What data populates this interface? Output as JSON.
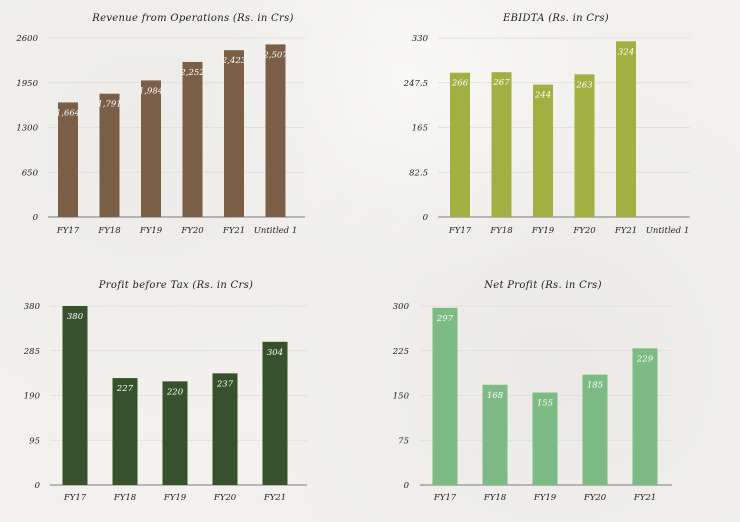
{
  "chart_data": [
    {
      "type": "bar",
      "title": "Revenue from Operations (Rs. in Crs)",
      "categories": [
        "FY17",
        "FY18",
        "FY19",
        "FY20",
        "FY21",
        "Untitled 1"
      ],
      "values": [
        1664,
        1791,
        1984,
        2252,
        2423,
        2507
      ],
      "labels": [
        "1,664",
        "1,791",
        "1,984",
        "2,252",
        "2,423",
        "2,507"
      ],
      "yticks": [
        "0",
        "650",
        "1300",
        "1950",
        "2600"
      ],
      "ylim": [
        0,
        2600
      ],
      "color": "#7a5f46",
      "grid": true
    },
    {
      "type": "bar",
      "title": "EBIDTA (Rs. in Crs)",
      "categories": [
        "FY17",
        "FY18",
        "FY19",
        "FY20",
        "FY21",
        "Untitled 1"
      ],
      "values": [
        266,
        267,
        244,
        263,
        324,
        null
      ],
      "labels": [
        "266",
        "267",
        "244",
        "263",
        "324",
        ""
      ],
      "yticks": [
        "0",
        "82.5",
        "165",
        "247.5",
        "330"
      ],
      "ylim": [
        0,
        330
      ],
      "color": "#a1b040",
      "grid": true
    },
    {
      "type": "bar",
      "title": "Profit before Tax (Rs. in Crs)",
      "categories": [
        "FY17",
        "FY18",
        "FY19",
        "FY20",
        "FY21"
      ],
      "values": [
        380,
        227,
        220,
        237,
        304
      ],
      "labels": [
        "380",
        "227",
        "220",
        "237",
        "304"
      ],
      "yticks": [
        "0",
        "95",
        "190",
        "285",
        "380"
      ],
      "ylim": [
        0,
        380
      ],
      "color": "#37512c",
      "grid": true
    },
    {
      "type": "bar",
      "title": "Net Profit (Rs. in Crs)",
      "categories": [
        "FY17",
        "FY18",
        "FY19",
        "FY20",
        "FY21"
      ],
      "values": [
        297,
        168,
        155,
        185,
        229
      ],
      "labels": [
        "297",
        "168",
        "155",
        "185",
        "229"
      ],
      "yticks": [
        "0",
        "75",
        "150",
        "225",
        "300"
      ],
      "ylim": [
        0,
        300
      ],
      "color": "#7ebb84",
      "grid": true
    }
  ]
}
